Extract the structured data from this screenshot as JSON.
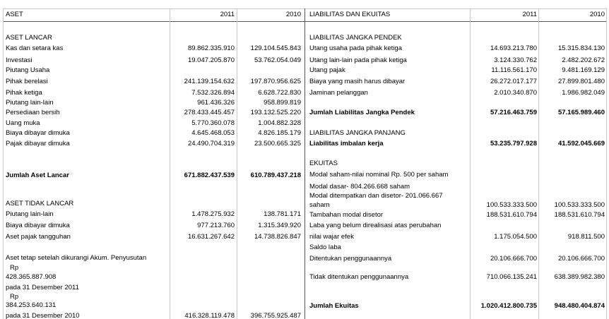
{
  "left": {
    "header": {
      "label": "ASET",
      "col1": "2011",
      "col2": "2010"
    },
    "rows": [
      {
        "label": "ASET LANCAR"
      },
      {
        "label": "Kas dan setara kas",
        "col1": "89.862.335.910",
        "col2": "129.104.545.843"
      },
      {
        "label": "Investasi",
        "col1": "19.047.205.870",
        "col2": "53.762.054.049"
      },
      {
        "label": "Piutang Usaha"
      },
      {
        "label": "Pihak berelasi",
        "col1": "241.139.154.632",
        "col2": "197.870.956.625"
      },
      {
        "label": "Pihak ketiga",
        "col1": "7.532.326.894",
        "col2": "6.628.722.830"
      },
      {
        "label": "Piutang lain-lain",
        "col1": "961.436.326",
        "col2": "958.899.819"
      },
      {
        "label": "Persediaan bersih",
        "col1": "278.433.445.457",
        "col2": "193.132.525.220"
      },
      {
        "label": "Uang muka",
        "col1": "5.770.360.078",
        "col2": "1.004.882.328"
      },
      {
        "label": "Biaya dibayar dimuka",
        "col1": "4.645.468.053",
        "col2": "4.826.185.179"
      },
      {
        "label": "Pajak dibayar dimuka",
        "col1": "24.490.704.319",
        "col2": "23.500.665.325"
      },
      {
        "label": "Jumlah Aset Lancar",
        "col1": "671.882.437.539",
        "col2": "610.789.437.218",
        "bold": true
      },
      {
        "label": "ASET TIDAK LANCAR"
      },
      {
        "label": "Piutang lain-lain",
        "col1": "1.478.275.932",
        "col2": "138.781.171"
      },
      {
        "label": "Biaya dibayar dimuka",
        "col1": "977.213.760",
        "col2": "1.315.349.920"
      },
      {
        "label": "Aset pajak tangguhan",
        "col1": "16.631.267.642",
        "col2": "14.738.826.847"
      },
      {
        "label": "Aset tetap setelah dikurangi Akum. Penyusutan"
      },
      {
        "label": "Rp"
      },
      {
        "label": "428.365.887.908"
      },
      {
        "label": "pada 31 Desember 2011"
      },
      {
        "label": "Rp"
      },
      {
        "label": "384.253.640.131"
      },
      {
        "label": "pada 31 Desember 2010",
        "col1": "416.328.119.478",
        "col2": "396.755.925.487"
      }
    ]
  },
  "right": {
    "header": {
      "label": "LIABILITAS DAN EKUITAS",
      "col1": "2011",
      "col2": "2010"
    },
    "rows": [
      {
        "label": "LIABILITAS JANGKA PENDEK"
      },
      {
        "label": "Utang usaha pada pihak ketiga",
        "col1": "14.693.213.780",
        "col2": "15.315.834.130"
      },
      {
        "label": "Utang lain-lain pada pihak ketiga",
        "col1": "3.124.330.762",
        "col2": "2.482.202.672"
      },
      {
        "label": "Utang pajak",
        "col1": "11.116.561.170",
        "col2": "9.481.169.129"
      },
      {
        "label": "Biaya yang masih harus dibayar",
        "col1": "26.272.017.177",
        "col2": "27.899.801.480"
      },
      {
        "label": "Jaminan pelanggan",
        "col1": "2.010.340.870",
        "col2": "1.986.982.049"
      },
      {
        "label": "Jumlah Liabilitas Jangka Pendek",
        "col1": "57.216.463.759",
        "col2": "57.165.989.460",
        "bold": true
      },
      {
        "label": "LIABILITAS JANGKA PANJANG"
      },
      {
        "label": "Liabilitas imbalan kerja",
        "col1": "53.235.797.928",
        "col2": "41.592.045.669",
        "bold": true
      },
      {
        "label": "EKUITAS"
      },
      {
        "label": "Modal saham-nilai nominal Rp. 500 per saham"
      },
      {
        "label": "Modal dasar- 804.266.668 saham"
      },
      {
        "label": "Modal ditempatkan dan disetor- 201.066.667"
      },
      {
        "label": "saham",
        "col1": "100.533.333.500",
        "col2": "100.533.333.500"
      },
      {
        "label": "Tambahan modal disetor",
        "col1": "188.531.610.794",
        "col2": "188.531.610.794"
      },
      {
        "label": "Laba yang belum direalisasi atas perubahan"
      },
      {
        "label": "nilai wajar efek",
        "col1": "1.175.054.500",
        "col2": "918.811.500"
      },
      {
        "label": "Saldo laba"
      },
      {
        "label": "Ditentukan penggunaannya",
        "col1": "20.106.666.700",
        "col2": "20.106.666.700"
      },
      {
        "label": "Tidak ditentukan penggunaannya",
        "col1": "710.066.135.241",
        "col2": "638.389.982.380"
      },
      {
        "label": "Jumlah Ekuitas",
        "col1": "1.020.412.800.735",
        "col2": "948.480.404.874",
        "bold": true
      }
    ]
  }
}
